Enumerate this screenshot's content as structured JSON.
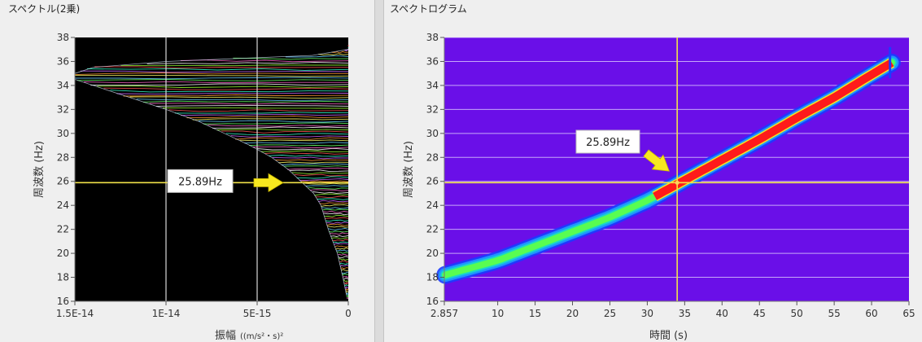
{
  "left_panel": {
    "title": "スペクトル(2乗)",
    "x_axis_label": "振幅",
    "x_axis_unit": "((m/s²・s)²",
    "y_axis_label": "周波数 (Hz)",
    "annotation": "25.89Hz"
  },
  "right_panel": {
    "title": "スペクトログラム",
    "x_axis_label": "時間 (s)",
    "y_axis_label": "周波数 (Hz)",
    "annotation": "25.89Hz"
  },
  "colors": {
    "plot_background_left": "#000000",
    "plot_background_right": "#6a0fe8",
    "cursor": "#f1e24a",
    "arrow": "#f7e81f",
    "grid_right": "#e5d9ff"
  },
  "chart_data": [
    {
      "type": "line",
      "title": "スペクトル(2乗)",
      "xlabel": "振幅 ((m/s²・s)²",
      "ylabel": "周波数 (Hz)",
      "x_ticks": [
        "1.5E-14",
        "1E-14",
        "5E-15",
        "0"
      ],
      "x_tick_values": [
        1.5e-14,
        1e-14,
        5e-15,
        0
      ],
      "xlim": [
        1.5e-14,
        0
      ],
      "x_reversed": true,
      "y_ticks": [
        "16",
        "18",
        "20",
        "22",
        "24",
        "26",
        "28",
        "30",
        "32",
        "34",
        "36",
        "38"
      ],
      "ylim": [
        16,
        38
      ],
      "grid": true,
      "cursor_frequency_hz": 25.89,
      "envelope": {
        "frequency_hz": [
          16.5,
          18,
          20,
          22,
          24,
          25,
          26,
          27,
          28,
          29,
          30,
          31,
          32,
          33,
          34,
          34.5,
          35,
          35.5,
          36,
          36.5,
          37
        ],
        "amplitude": [
          1e-16,
          3e-16,
          6e-16,
          1.1e-15,
          1.5e-15,
          1.9e-15,
          2.6e-15,
          3.3e-15,
          4.2e-15,
          5.4e-15,
          6.8e-15,
          8.2e-15,
          1e-14,
          1.2e-14,
          1.4e-14,
          1.5e-14,
          1.5e-14,
          1.4e-14,
          1e-14,
          2e-15,
          0
        ]
      }
    },
    {
      "type": "heatmap",
      "title": "スペクトログラム",
      "xlabel": "時間 (s)",
      "ylabel": "周波数 (Hz)",
      "x_ticks": [
        "2.857",
        "10",
        "15",
        "20",
        "25",
        "30",
        "35",
        "40",
        "45",
        "50",
        "55",
        "60",
        "65"
      ],
      "x_tick_values": [
        2.857,
        10,
        15,
        20,
        25,
        30,
        35,
        40,
        45,
        50,
        55,
        60,
        65
      ],
      "xlim": [
        2.857,
        65
      ],
      "y_ticks": [
        "16",
        "18",
        "20",
        "22",
        "24",
        "26",
        "28",
        "30",
        "32",
        "34",
        "36",
        "38"
      ],
      "ylim": [
        16,
        38
      ],
      "grid": true,
      "cursor_frequency_hz": 25.89,
      "cursor_time_s": 34,
      "ridge": {
        "time_s": [
          3,
          10,
          15,
          20,
          25,
          30,
          35,
          40,
          45,
          50,
          55,
          60,
          62.7
        ],
        "frequency_hz": [
          18.2,
          19.4,
          20.6,
          21.8,
          23.0,
          24.4,
          26.1,
          27.8,
          29.5,
          31.3,
          33.0,
          34.9,
          35.9
        ],
        "intensity": [
          0.3,
          0.35,
          0.45,
          0.6,
          0.7,
          0.85,
          0.95,
          1.0,
          1.0,
          1.0,
          1.0,
          1.0,
          1.0
        ]
      }
    }
  ]
}
